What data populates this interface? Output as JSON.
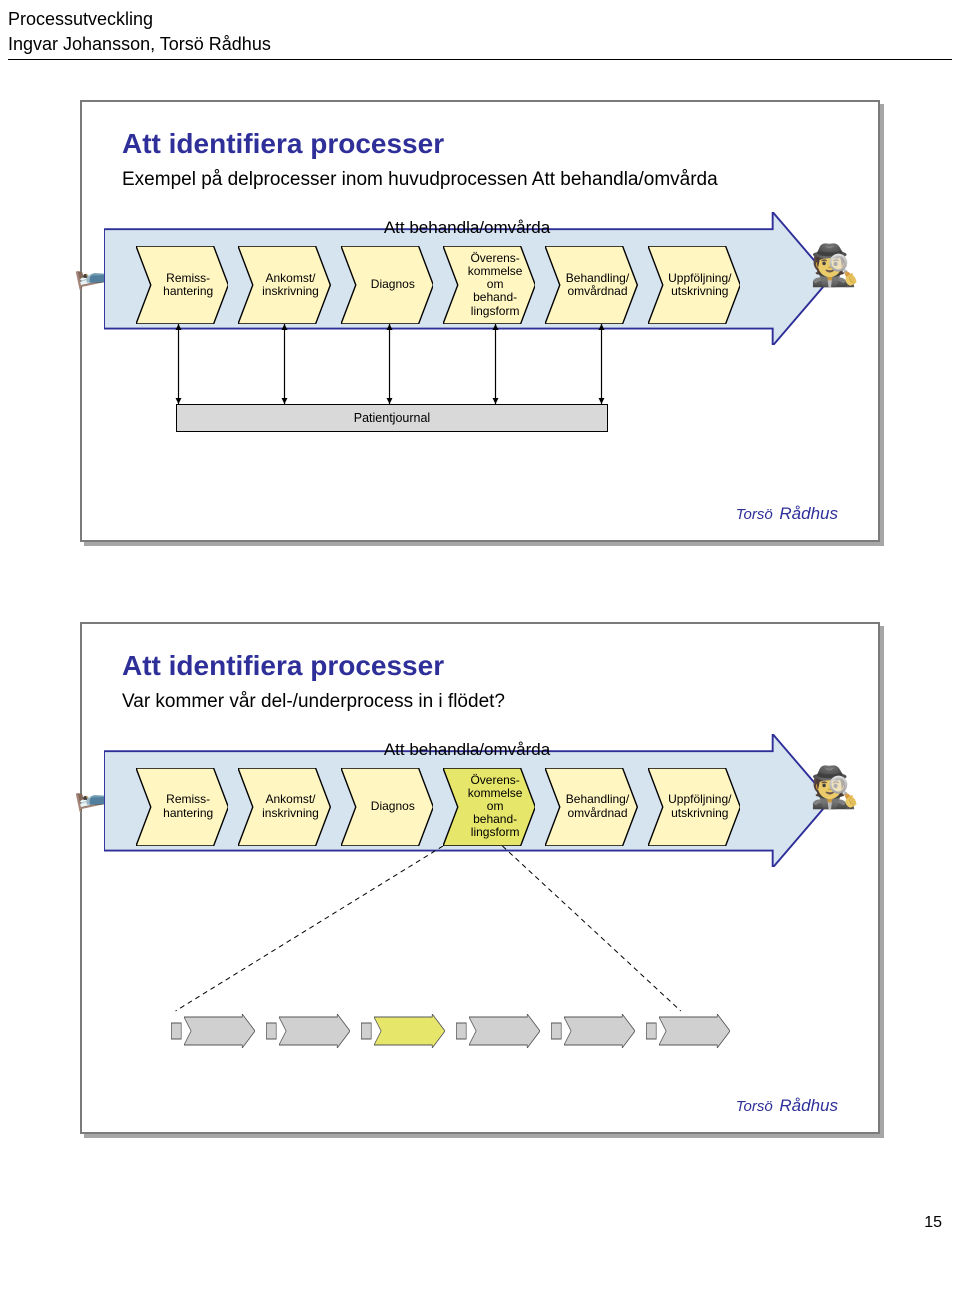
{
  "page": {
    "header_line1": "Processutveckling",
    "header_line2": "Ingvar Johansson, Torsö Rådhus",
    "number": "15"
  },
  "footer": {
    "small": "Torsö",
    "big": " Rådhus"
  },
  "colors": {
    "big_arrow_fill": "#d6e4ef",
    "big_arrow_stroke": "#2f2f9a",
    "step_fill": "#fff6c2",
    "step_stroke": "#000000",
    "step_hl_fill": "#e6e66a",
    "journal_fill": "#d9d9d9",
    "mini_step_fill": "#d0d0d0",
    "mini_step_hl": "#e6e66a"
  },
  "slide1": {
    "title": "Att identifiera processer",
    "subtitle": "Exempel på delprocesser inom huvudprocessen Att behandla/omvårda",
    "big_arrow_label": "Att behandla/omvårda",
    "steps": [
      "Remiss-\nhantering",
      "Ankomst/\ninskrivning",
      "Diagnos",
      "Överens-\nkommelse\nom\nbehand-\nlingsform",
      "Behandling/\nomvårdnad",
      "Uppföljning/\nutskrivning"
    ],
    "journal_label": "Patientjournal",
    "highlight_index": -1
  },
  "slide2": {
    "title": "Att identifiera processer",
    "subtitle": "Var kommer vår del-/underprocess in i flödet?",
    "big_arrow_label": "Att behandla/omvårda",
    "steps": [
      "Remiss-\nhantering",
      "Ankomst/\ninskrivning",
      "Diagnos",
      "Överens-\nkommelse\nom\nbehand-\nlingsform",
      "Behandling/\nomvårdnad",
      "Uppföljning/\nutskrivning"
    ],
    "highlight_index": 3,
    "mini_highlight_index": 2,
    "mini_count": 6
  }
}
